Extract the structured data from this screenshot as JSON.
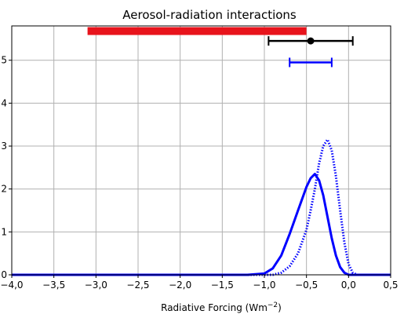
{
  "chart_data": {
    "type": "line",
    "title": "Aerosol-radiation interactions",
    "xlabel": "Radiative Forcing (Wm",
    "xlabel_sup": "−2",
    "xlabel_close": ")",
    "ylabel": "",
    "xlim": [
      -4.0,
      0.5
    ],
    "ylim": [
      0,
      5.8
    ],
    "grid": true,
    "x_ticks": [
      -4.0,
      -3.5,
      -3.0,
      -2.5,
      -2.0,
      -1.5,
      -1.0,
      -0.5,
      0.0,
      0.5
    ],
    "x_tick_labels": [
      "−4,0",
      "−3,5",
      "−3,0",
      "−2,5",
      "−2,0",
      "−1,5",
      "−1,0",
      "−0,5",
      "0,0",
      "0,5"
    ],
    "y_ticks": [
      0,
      1,
      2,
      3,
      4,
      5
    ],
    "y_tick_labels": [
      "0",
      "1",
      "2",
      "3",
      "4",
      "5"
    ],
    "series": [
      {
        "style": "solid",
        "color": "#0000ff",
        "x": [
          -4.0,
          -1.2,
          -1.0,
          -0.9,
          -0.8,
          -0.7,
          -0.6,
          -0.5,
          -0.45,
          -0.4,
          -0.35,
          -0.3,
          -0.25,
          -0.2,
          -0.15,
          -0.1,
          -0.05,
          0.0,
          0.5
        ],
        "y": [
          0.0,
          0.0,
          0.03,
          0.15,
          0.45,
          0.95,
          1.5,
          2.05,
          2.25,
          2.35,
          2.2,
          1.85,
          1.35,
          0.85,
          0.45,
          0.18,
          0.05,
          0.0,
          0.0
        ]
      },
      {
        "style": "dotted",
        "color": "#0000ff",
        "x": [
          -4.0,
          -0.9,
          -0.8,
          -0.7,
          -0.6,
          -0.5,
          -0.45,
          -0.4,
          -0.35,
          -0.3,
          -0.25,
          -0.2,
          -0.15,
          -0.1,
          -0.05,
          0.0,
          0.05,
          0.1,
          0.5
        ],
        "y": [
          0.0,
          0.0,
          0.05,
          0.2,
          0.5,
          1.05,
          1.5,
          2.0,
          2.6,
          3.0,
          3.15,
          2.9,
          2.3,
          1.5,
          0.75,
          0.25,
          0.05,
          0.0,
          0.0
        ]
      }
    ],
    "error_bars": [
      {
        "color": "#000000",
        "y": 5.45,
        "center": -0.45,
        "low": -0.95,
        "high": 0.05,
        "marker": "dot"
      },
      {
        "color": "#0000ff",
        "y": 4.95,
        "low": -0.7,
        "high": -0.2,
        "marker": "none"
      }
    ],
    "range_bar": {
      "color": "#e8141c",
      "y": 5.68,
      "low": -3.1,
      "high": -0.5
    }
  }
}
